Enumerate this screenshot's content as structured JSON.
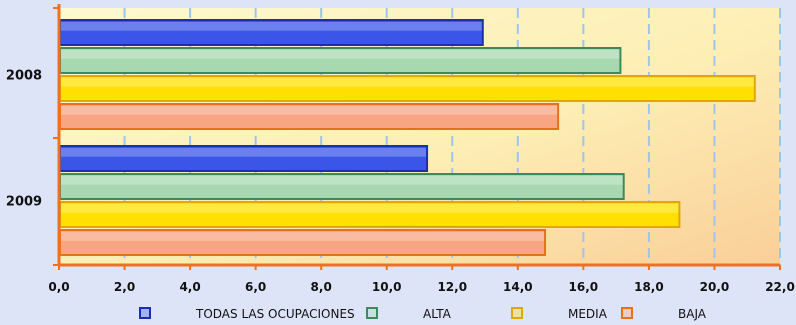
{
  "chart_data": {
    "type": "bar",
    "orientation": "horizontal",
    "categories": [
      "2008",
      "2009"
    ],
    "series": [
      {
        "name": "TODAS LAS OCUPACIONES",
        "values": [
          12.9,
          11.2
        ],
        "color": "#3a55e8",
        "edge": "#1a2fb0"
      },
      {
        "name": "ALTA",
        "values": [
          17.1,
          17.2
        ],
        "color": "#a8d8b0",
        "edge": "#3a8a5a"
      },
      {
        "name": "MEDIA",
        "values": [
          21.2,
          18.9
        ],
        "color": "#ffe000",
        "edge": "#e0a800"
      },
      {
        "name": "BAJA",
        "values": [
          15.2,
          14.8
        ],
        "color": "#f7a583",
        "edge": "#e8701a"
      }
    ],
    "xlim": [
      0,
      22
    ],
    "xticks": [
      "0,0",
      "2,0",
      "4,0",
      "6,0",
      "8,0",
      "10,0",
      "12,0",
      "14,0",
      "16,0",
      "18,0",
      "20,0",
      "22,0"
    ],
    "grid": "vertical dashed",
    "legend_position": "bottom",
    "axis_color": "#f07020",
    "gridline_color": "#9ec4ef"
  }
}
